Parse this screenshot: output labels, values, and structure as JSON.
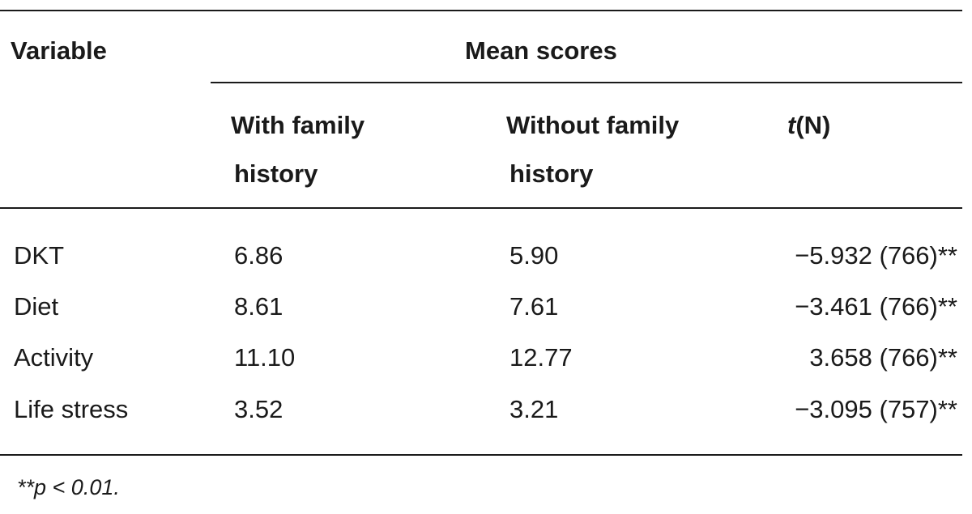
{
  "table": {
    "header": {
      "variable": "Variable",
      "mean_scores": "Mean scores",
      "with_family_line1": "With family",
      "with_family_line2": "history",
      "without_family_line1": "Without family",
      "without_family_line2": "history",
      "t_symbol": "t",
      "t_suffix": "(N)"
    },
    "rows": [
      {
        "variable": "DKT",
        "with": "6.86",
        "without": "5.90",
        "t": "−5.932 (766)**"
      },
      {
        "variable": "Diet",
        "with": "8.61",
        "without": "7.61",
        "t": "−3.461 (766)**"
      },
      {
        "variable": "Activity",
        "with": "11.10",
        "without": "12.77",
        "t": "3.658 (766)**"
      },
      {
        "variable": "Life stress",
        "with": "3.52",
        "without": "3.21",
        "t": "−3.095 (757)**"
      }
    ],
    "footnote": "**p < 0.01."
  }
}
